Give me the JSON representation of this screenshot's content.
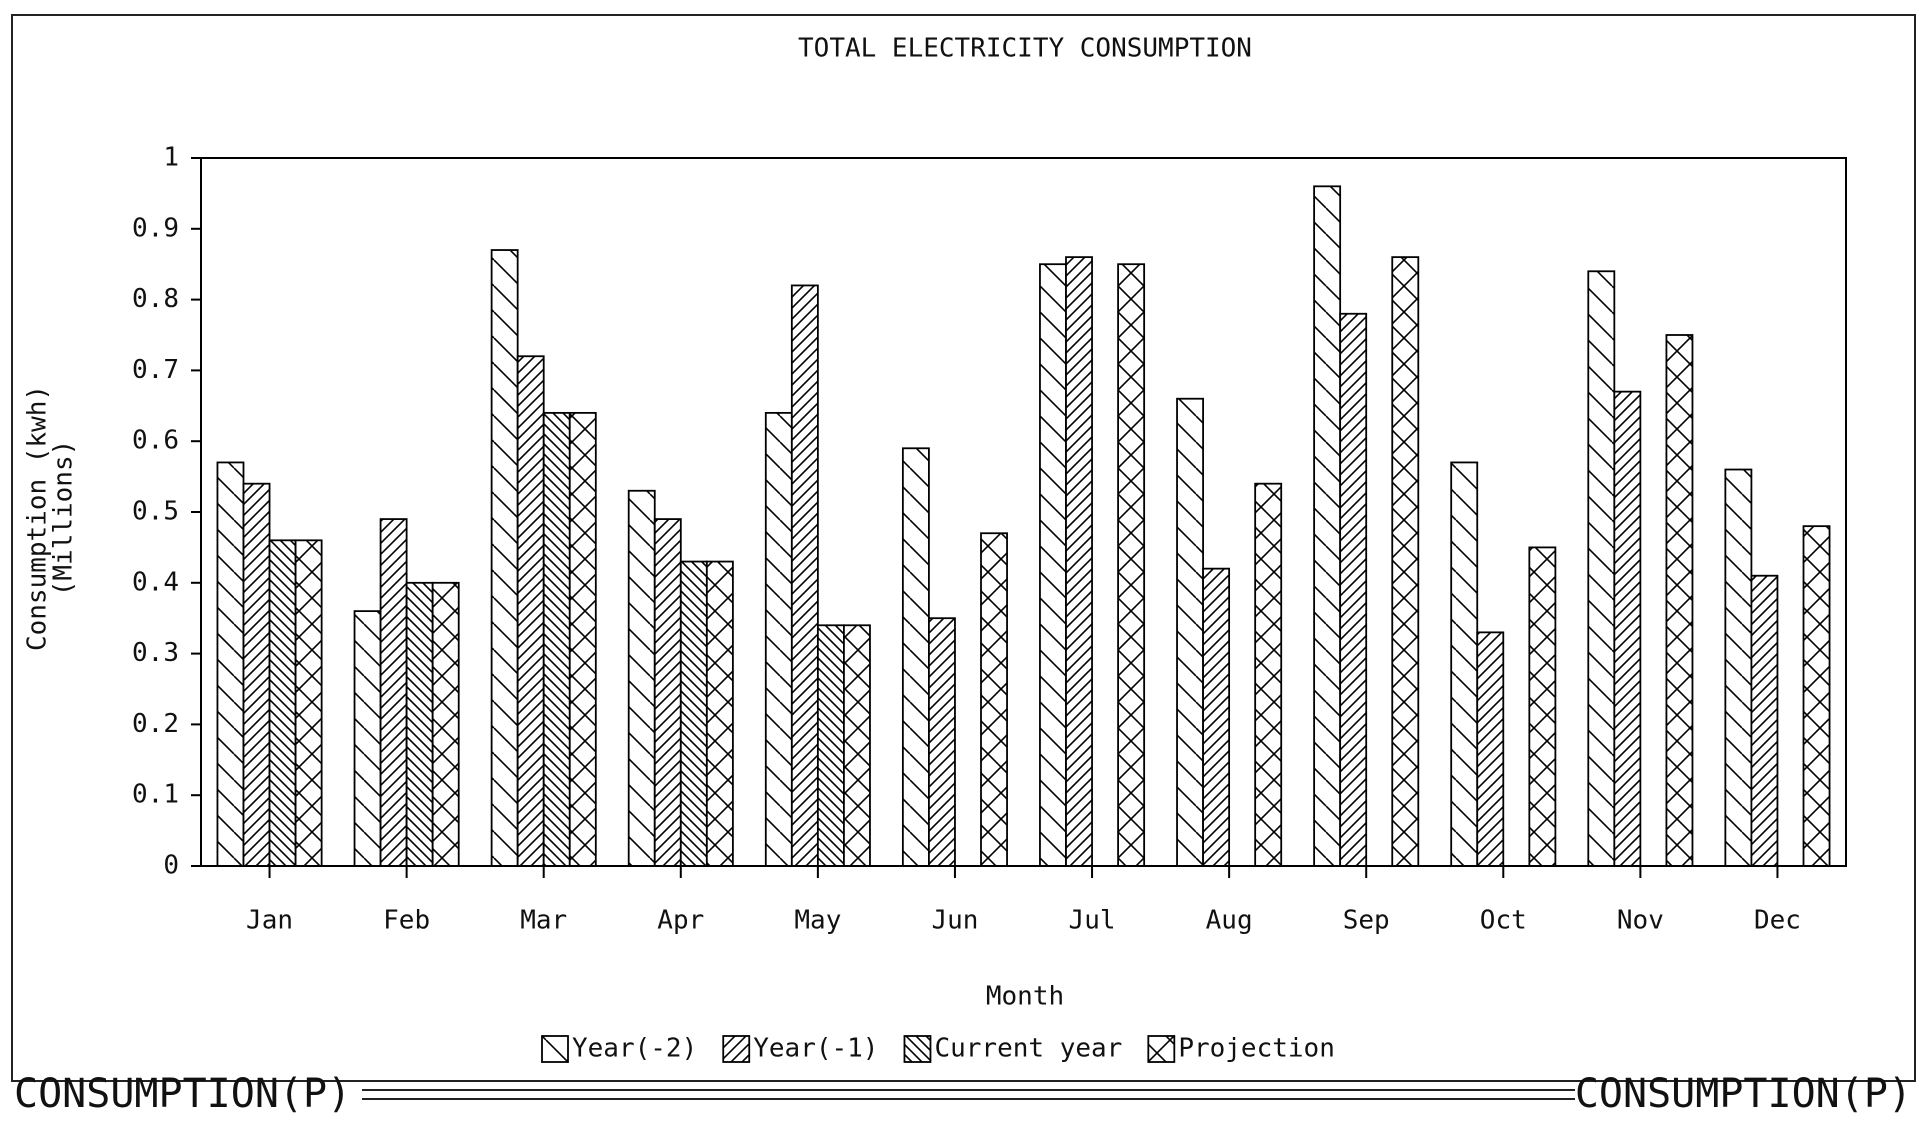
{
  "chart_data": {
    "type": "bar",
    "title": "TOTAL ELECTRICITY CONSUMPTION",
    "xlabel": "Month",
    "ylabel": [
      "Consumption (kwh)",
      "(Millions)"
    ],
    "categories": [
      "Jan",
      "Feb",
      "Mar",
      "Apr",
      "May",
      "Jun",
      "Jul",
      "Aug",
      "Sep",
      "Oct",
      "Nov",
      "Dec"
    ],
    "series": [
      {
        "name": "Year(-2)",
        "color": "#000000",
        "hatch": "back-sparse",
        "values": [
          0.57,
          0.36,
          0.87,
          0.53,
          0.64,
          0.59,
          0.85,
          0.66,
          0.96,
          0.57,
          0.84,
          0.56
        ]
      },
      {
        "name": "Year(-1)",
        "color": "#000000",
        "hatch": "forward",
        "values": [
          0.54,
          0.49,
          0.72,
          0.49,
          0.82,
          0.35,
          0.86,
          0.42,
          0.78,
          0.33,
          0.67,
          0.41
        ]
      },
      {
        "name": "Current year",
        "color": "#000000",
        "hatch": "back-dense",
        "values": [
          0.46,
          0.4,
          0.64,
          0.43,
          0.34,
          null,
          null,
          null,
          null,
          null,
          null,
          null
        ]
      },
      {
        "name": "Projection",
        "color": "#000000",
        "hatch": "cross",
        "values": [
          0.46,
          0.4,
          0.64,
          0.43,
          0.34,
          0.47,
          0.85,
          0.54,
          0.86,
          0.45,
          0.75,
          0.48
        ]
      }
    ],
    "ylim": [
      0,
      1
    ],
    "yticks": [
      0,
      0.1,
      0.2,
      0.3,
      0.4,
      0.5,
      0.6,
      0.7,
      0.8,
      0.9,
      1
    ],
    "grid": false
  },
  "status_bar": {
    "left": "CONSUMPTION(P)",
    "right": "CONSUMPTION(P)"
  }
}
